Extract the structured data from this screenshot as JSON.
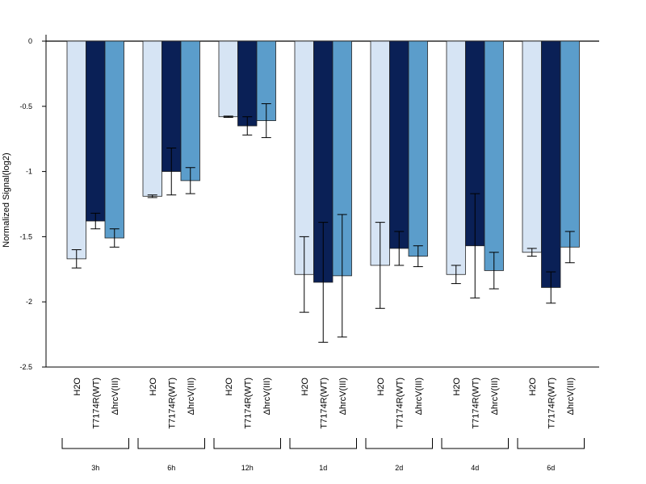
{
  "chart_data": {
    "type": "bar",
    "ylabel": "Normalized Signal(log2)",
    "ylim": [
      -2.5,
      0
    ],
    "yticks": [
      0,
      -0.5,
      -1,
      -1.5,
      -2,
      -2.5
    ],
    "ytick_labels": [
      "0",
      "-0.5",
      "-1",
      "-1.5",
      "-2",
      "-2.5"
    ],
    "grid": false,
    "legend": "none",
    "series_names": [
      "H2O",
      "T7174R(WT)",
      "ΔhrcV(III)"
    ],
    "series_colors": [
      "#d6e4f4",
      "#0a2056",
      "#5b9dcb"
    ],
    "groups": [
      "3h",
      "6h",
      "12h",
      "1d",
      "2d",
      "4d",
      "6d"
    ],
    "values": [
      [
        -1.67,
        -1.38,
        -1.51
      ],
      [
        -1.19,
        -1.0,
        -1.07
      ],
      [
        -0.58,
        -0.65,
        -0.61
      ],
      [
        -1.79,
        -1.85,
        -1.8
      ],
      [
        -1.72,
        -1.59,
        -1.65
      ],
      [
        -1.79,
        -1.57,
        -1.76
      ],
      [
        -1.62,
        -1.89,
        -1.58
      ]
    ],
    "errors": [
      [
        0.07,
        0.06,
        0.07
      ],
      [
        0.01,
        0.18,
        0.1
      ],
      [
        0.005,
        0.07,
        0.13
      ],
      [
        0.29,
        0.46,
        0.47
      ],
      [
        0.33,
        0.13,
        0.08
      ],
      [
        0.07,
        0.4,
        0.14
      ],
      [
        0.03,
        0.12,
        0.12
      ]
    ]
  }
}
